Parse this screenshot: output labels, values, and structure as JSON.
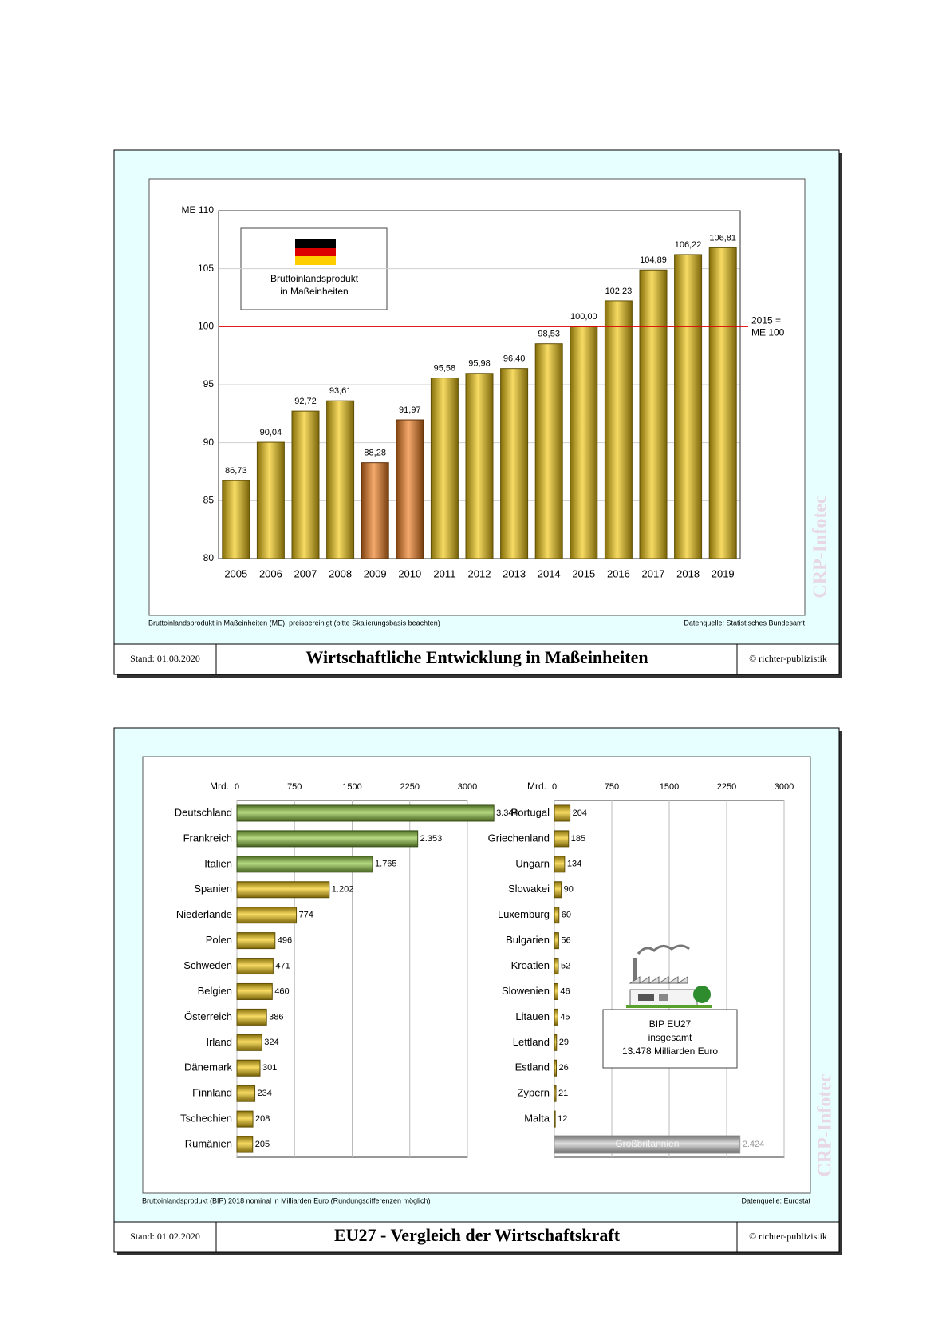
{
  "chart_data": [
    {
      "type": "bar",
      "categories": [
        "2005",
        "2006",
        "2007",
        "2008",
        "2009",
        "2010",
        "2011",
        "2012",
        "2013",
        "2014",
        "2015",
        "2016",
        "2017",
        "2018",
        "2019"
      ],
      "values": [
        86.73,
        90.04,
        92.72,
        93.61,
        88.28,
        91.97,
        95.58,
        95.98,
        96.4,
        98.53,
        100.0,
        102.23,
        104.89,
        106.22,
        106.81
      ],
      "value_labels": [
        "86,73",
        "90,04",
        "92,72",
        "93,61",
        "88,28",
        "91,97",
        "95,58",
        "95,98",
        "96,40",
        "98,53",
        "100,00",
        "102,23",
        "104,89",
        "106,22",
        "106,81"
      ],
      "colors": [
        "#f2c811",
        "#f2c811",
        "#f2c811",
        "#f2c811",
        "#f07c1e",
        "#f07c1e",
        "#f2c811",
        "#f2c811",
        "#f2c811",
        "#f2c811",
        "#f2c811",
        "#f2c811",
        "#f2c811",
        "#f2c811",
        "#f2c811"
      ],
      "ylim": [
        80,
        110
      ],
      "yticks": [
        80,
        85,
        90,
        95,
        100,
        105,
        {
          "value": 110,
          "label": "ME 110"
        }
      ],
      "grid": true,
      "reference_line": {
        "value": 100,
        "color": "#e00000",
        "label": [
          "2015 =",
          "ME 100"
        ]
      },
      "legend": [
        "Bruttoinlandsprodukt",
        "in Maßeinheiten"
      ]
    },
    {
      "type": "barh",
      "xlabel": "Mrd.",
      "categories": [
        "Deutschland",
        "Frankreich",
        "Italien",
        "Spanien",
        "Niederlande",
        "Polen",
        "Schweden",
        "Belgien",
        "Österreich",
        "Irland",
        "Dänemark",
        "Finnland",
        "Tschechien",
        "Rumänien"
      ],
      "values": [
        3344,
        2353,
        1765,
        1202,
        774,
        496,
        471,
        460,
        386,
        324,
        301,
        234,
        208,
        205
      ],
      "value_labels": [
        "3.344",
        "2.353",
        "1.765",
        "1.202",
        "774",
        "496",
        "471",
        "460",
        "386",
        "324",
        "301",
        "234",
        "208",
        "205"
      ],
      "colors": [
        "#8dc63f",
        "#8dc63f",
        "#8dc63f",
        "#f2c811",
        "#f2c811",
        "#f2c811",
        "#f2c811",
        "#f2c811",
        "#f2c811",
        "#f2c811",
        "#f2c811",
        "#f2c811",
        "#f2c811",
        "#f2c811"
      ],
      "xlim": [
        0,
        3000
      ],
      "xticks": [
        0,
        750,
        1500,
        2250,
        3000
      ],
      "grid": true
    },
    {
      "type": "barh",
      "xlabel": "Mrd.",
      "categories": [
        "Portugal",
        "Griechenland",
        "Ungarn",
        "Slowakei",
        "Luxemburg",
        "Bulgarien",
        "Kroatien",
        "Slowenien",
        "Litauen",
        "Lettland",
        "Estland",
        "Zypern",
        "Malta"
      ],
      "values": [
        204,
        185,
        134,
        90,
        60,
        56,
        52,
        46,
        45,
        29,
        26,
        21,
        12
      ],
      "colors": [
        "#f2c811",
        "#f2c811",
        "#f2c811",
        "#f2c811",
        "#f2c811",
        "#f2c811",
        "#f2c811",
        "#f2c811",
        "#f2c811",
        "#f2c811",
        "#f2c811",
        "#f2c811",
        "#f2c811"
      ],
      "xlim": [
        0,
        3000
      ],
      "xticks": [
        0,
        750,
        1500,
        2250,
        3000
      ],
      "grid": true,
      "outside_eu": {
        "name": "Großbritannien",
        "value": 2424,
        "value_label": "2.424",
        "color": "#d0d0d0"
      },
      "info_box": [
        "BIP EU27",
        "insgesamt",
        "13.478 Milliarden Euro"
      ]
    }
  ],
  "panels": [
    {
      "footnote": "Bruttoinlandsprodukt in Maßeinheiten (ME), preisbereinigt (bitte Skalierungsbasis beachten)",
      "source": "Datenquelle: Statistisches Bundesamt",
      "stand": "Stand: 01.08.2020",
      "title": "Wirtschaftliche Entwicklung in Maßeinheiten",
      "copyright": "© richter-publizistik",
      "watermark": "CRP-Infotec"
    },
    {
      "footnote": "Bruttoinlandsprodukt (BIP) 2018 nominal in Milliarden Euro (Rundungsdifferenzen möglich)",
      "source": "Datenquelle: Eurostat",
      "stand": "Stand: 01.02.2020",
      "title": "EU27 - Vergleich der Wirtschaftskraft",
      "copyright": "© richter-publizistik",
      "watermark": "CRP-Infotec"
    }
  ]
}
